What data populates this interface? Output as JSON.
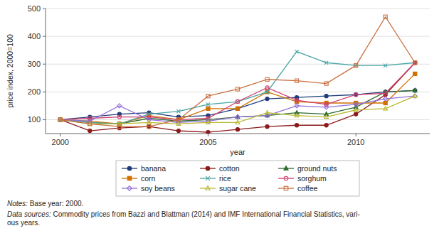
{
  "chart_data": {
    "type": "line",
    "x": [
      2000,
      2001,
      2002,
      2003,
      2004,
      2005,
      2006,
      2007,
      2008,
      2009,
      2010,
      2011,
      2012
    ],
    "series": [
      {
        "name": "banana",
        "color": "#1f3d7a",
        "marker": "circle",
        "values": [
          100,
          110,
          120,
          125,
          110,
          115,
          140,
          175,
          180,
          185,
          190,
          200,
          205
        ]
      },
      {
        "name": "cotton",
        "color": "#8b1a1a",
        "marker": "circle",
        "values": [
          100,
          60,
          70,
          75,
          60,
          55,
          65,
          75,
          80,
          80,
          120,
          190,
          305
        ]
      },
      {
        "name": "ground nuts",
        "color": "#2d6a2d",
        "marker": "triangle",
        "values": [
          100,
          90,
          85,
          105,
          95,
          100,
          110,
          115,
          125,
          120,
          145,
          200,
          205
        ]
      },
      {
        "name": "corn",
        "color": "#d07000",
        "marker": "square",
        "values": [
          100,
          95,
          85,
          115,
          100,
          140,
          140,
          200,
          165,
          160,
          160,
          160,
          265
        ]
      },
      {
        "name": "rice",
        "color": "#4aa5a5",
        "marker": "x",
        "values": [
          100,
          90,
          85,
          120,
          130,
          155,
          165,
          200,
          345,
          305,
          295,
          295,
          305
        ]
      },
      {
        "name": "sorghum",
        "color": "#d04070",
        "marker": "open-circle",
        "values": [
          100,
          105,
          110,
          110,
          100,
          105,
          165,
          215,
          170,
          155,
          190,
          195,
          305
        ]
      },
      {
        "name": "soy beans",
        "color": "#9370db",
        "marker": "open-diamond",
        "values": [
          100,
          95,
          150,
          100,
          90,
          95,
          110,
          115,
          150,
          145,
          155,
          175,
          185
        ]
      },
      {
        "name": "sugar cane",
        "color": "#b8b830",
        "marker": "open-triangle",
        "values": [
          100,
          85,
          85,
          90,
          85,
          90,
          90,
          125,
          115,
          110,
          135,
          140,
          185
        ]
      },
      {
        "name": "coffee",
        "color": "#c87040",
        "marker": "open-square",
        "values": [
          100,
          85,
          75,
          75,
          100,
          185,
          210,
          245,
          240,
          230,
          295,
          470,
          305
        ]
      }
    ],
    "x_label": "year",
    "y_label": "price index, 2000=100",
    "xlim": [
      1999.5,
      2012.5
    ],
    "xticks": [
      2000,
      2005,
      2010
    ],
    "ylim": [
      50,
      500
    ],
    "yticks": [
      100,
      200,
      300,
      400,
      500
    ],
    "grid": true,
    "legend": "bottom",
    "annotations": [
      {
        "label": "Notes:",
        "text": " Base year: 2000."
      },
      {
        "label": "Data sources:",
        "text": " Commodity prices from Bazzi and Blattman (2014) and IMF International Financial Statistics, vari-\nous years."
      }
    ]
  }
}
